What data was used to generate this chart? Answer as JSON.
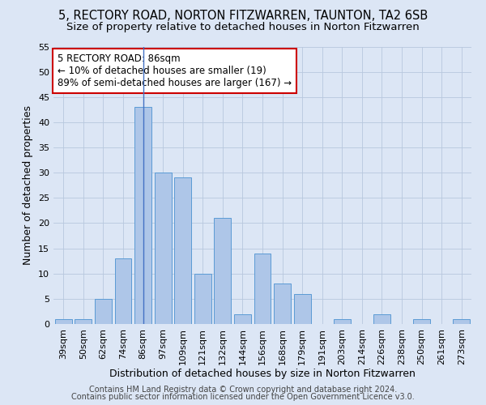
{
  "title_line1": "5, RECTORY ROAD, NORTON FITZWARREN, TAUNTON, TA2 6SB",
  "title_line2": "Size of property relative to detached houses in Norton Fitzwarren",
  "xlabel": "Distribution of detached houses by size in Norton Fitzwarren",
  "ylabel": "Number of detached properties",
  "bin_labels": [
    "39sqm",
    "50sqm",
    "62sqm",
    "74sqm",
    "86sqm",
    "97sqm",
    "109sqm",
    "121sqm",
    "132sqm",
    "144sqm",
    "156sqm",
    "168sqm",
    "179sqm",
    "191sqm",
    "203sqm",
    "214sqm",
    "226sqm",
    "238sqm",
    "250sqm",
    "261sqm",
    "273sqm"
  ],
  "bar_heights": [
    1,
    1,
    5,
    13,
    43,
    30,
    29,
    10,
    21,
    2,
    14,
    8,
    6,
    0,
    1,
    0,
    2,
    0,
    1,
    0,
    1
  ],
  "bar_color": "#aec6e8",
  "bar_edgecolor": "#5b9bd5",
  "highlight_bin_index": 4,
  "highlight_line_color": "#4472c4",
  "ylim": [
    0,
    55
  ],
  "yticks": [
    0,
    5,
    10,
    15,
    20,
    25,
    30,
    35,
    40,
    45,
    50,
    55
  ],
  "annotation_text": "5 RECTORY ROAD: 86sqm\n← 10% of detached houses are smaller (19)\n89% of semi-detached houses are larger (167) →",
  "annotation_box_color": "#ffffff",
  "annotation_box_edgecolor": "#cc0000",
  "fig_bg_color": "#dce6f5",
  "plot_bg_color": "#dce6f5",
  "footer_line1": "Contains HM Land Registry data © Crown copyright and database right 2024.",
  "footer_line2": "Contains public sector information licensed under the Open Government Licence v3.0.",
  "title_fontsize": 10.5,
  "subtitle_fontsize": 9.5,
  "xlabel_fontsize": 9,
  "ylabel_fontsize": 9,
  "tick_fontsize": 8,
  "annotation_fontsize": 8.5,
  "footer_fontsize": 7
}
